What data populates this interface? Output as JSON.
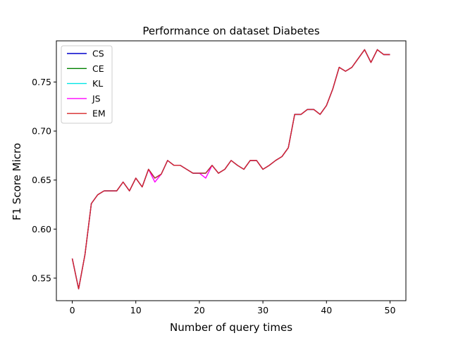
{
  "chart_data": {
    "type": "line",
    "title": "Performance on dataset Diabetes",
    "xlabel": "Number of query times",
    "ylabel": "F1 Score Micro",
    "xlim": [
      -2.5,
      52.5
    ],
    "ylim": [
      0.527,
      0.792
    ],
    "xticks": [
      0,
      10,
      20,
      30,
      40,
      50
    ],
    "yticks": [
      0.55,
      0.6,
      0.65,
      0.7,
      0.75
    ],
    "ytick_labels": [
      "0.55",
      "0.60",
      "0.65",
      "0.70",
      "0.75"
    ],
    "grid": false,
    "legend": "top-left",
    "x": [
      0,
      1,
      2,
      3,
      4,
      5,
      6,
      7,
      8,
      9,
      10,
      11,
      12,
      13,
      14,
      15,
      16,
      17,
      18,
      19,
      20,
      21,
      22,
      23,
      24,
      25,
      26,
      27,
      28,
      29,
      30,
      31,
      32,
      33,
      34,
      35,
      36,
      37,
      38,
      39,
      40,
      41,
      42,
      43,
      44,
      45,
      46,
      47,
      48,
      49,
      50
    ],
    "series": [
      {
        "name": "CS",
        "color": "#0000cc",
        "values": [
          0.57,
          0.539,
          0.574,
          0.626,
          0.635,
          0.639,
          0.639,
          0.639,
          0.648,
          0.639,
          0.652,
          0.643,
          0.661,
          0.652,
          0.656,
          0.67,
          0.665,
          0.665,
          0.661,
          0.657,
          0.657,
          0.657,
          0.665,
          0.657,
          0.661,
          0.67,
          0.665,
          0.661,
          0.67,
          0.67,
          0.661,
          0.665,
          0.67,
          0.674,
          0.683,
          0.717,
          0.717,
          0.722,
          0.722,
          0.717,
          0.726,
          0.743,
          0.765,
          0.761,
          0.765,
          0.774,
          0.783,
          0.77,
          0.783,
          0.778,
          0.778
        ]
      },
      {
        "name": "CE",
        "color": "#008000",
        "values": [
          0.57,
          0.539,
          0.574,
          0.626,
          0.635,
          0.639,
          0.639,
          0.639,
          0.648,
          0.639,
          0.652,
          0.643,
          0.661,
          0.652,
          0.656,
          0.67,
          0.665,
          0.665,
          0.661,
          0.657,
          0.657,
          0.657,
          0.665,
          0.657,
          0.661,
          0.67,
          0.665,
          0.661,
          0.67,
          0.67,
          0.661,
          0.665,
          0.67,
          0.674,
          0.683,
          0.717,
          0.717,
          0.722,
          0.722,
          0.717,
          0.726,
          0.743,
          0.765,
          0.761,
          0.765,
          0.774,
          0.783,
          0.77,
          0.783,
          0.778,
          0.778
        ]
      },
      {
        "name": "KL",
        "color": "#00e5e5",
        "values": [
          0.57,
          0.539,
          0.574,
          0.626,
          0.635,
          0.639,
          0.639,
          0.639,
          0.648,
          0.639,
          0.652,
          0.643,
          0.661,
          0.652,
          0.656,
          0.67,
          0.665,
          0.665,
          0.661,
          0.657,
          0.657,
          0.657,
          0.665,
          0.657,
          0.661,
          0.67,
          0.665,
          0.661,
          0.67,
          0.67,
          0.661,
          0.665,
          0.67,
          0.674,
          0.683,
          0.717,
          0.717,
          0.722,
          0.722,
          0.717,
          0.726,
          0.743,
          0.765,
          0.761,
          0.765,
          0.774,
          0.783,
          0.77,
          0.783,
          0.778,
          0.778
        ]
      },
      {
        "name": "JS",
        "color": "#ff00ff",
        "values": [
          0.57,
          0.539,
          0.574,
          0.626,
          0.635,
          0.639,
          0.639,
          0.639,
          0.648,
          0.639,
          0.652,
          0.643,
          0.661,
          0.648,
          0.656,
          0.67,
          0.665,
          0.665,
          0.661,
          0.657,
          0.657,
          0.652,
          0.665,
          0.657,
          0.661,
          0.67,
          0.665,
          0.661,
          0.67,
          0.67,
          0.661,
          0.665,
          0.67,
          0.674,
          0.683,
          0.717,
          0.717,
          0.722,
          0.722,
          0.717,
          0.726,
          0.743,
          0.765,
          0.761,
          0.765,
          0.774,
          0.783,
          0.77,
          0.783,
          0.778,
          0.778
        ]
      },
      {
        "name": "EM",
        "color": "#d62728",
        "values": [
          0.57,
          0.539,
          0.574,
          0.626,
          0.635,
          0.639,
          0.639,
          0.639,
          0.648,
          0.639,
          0.652,
          0.643,
          0.661,
          0.652,
          0.656,
          0.67,
          0.665,
          0.665,
          0.661,
          0.657,
          0.657,
          0.657,
          0.665,
          0.657,
          0.661,
          0.67,
          0.665,
          0.661,
          0.67,
          0.67,
          0.661,
          0.665,
          0.67,
          0.674,
          0.683,
          0.717,
          0.717,
          0.722,
          0.722,
          0.717,
          0.726,
          0.743,
          0.765,
          0.761,
          0.765,
          0.774,
          0.783,
          0.77,
          0.783,
          0.778,
          0.778
        ]
      }
    ]
  }
}
